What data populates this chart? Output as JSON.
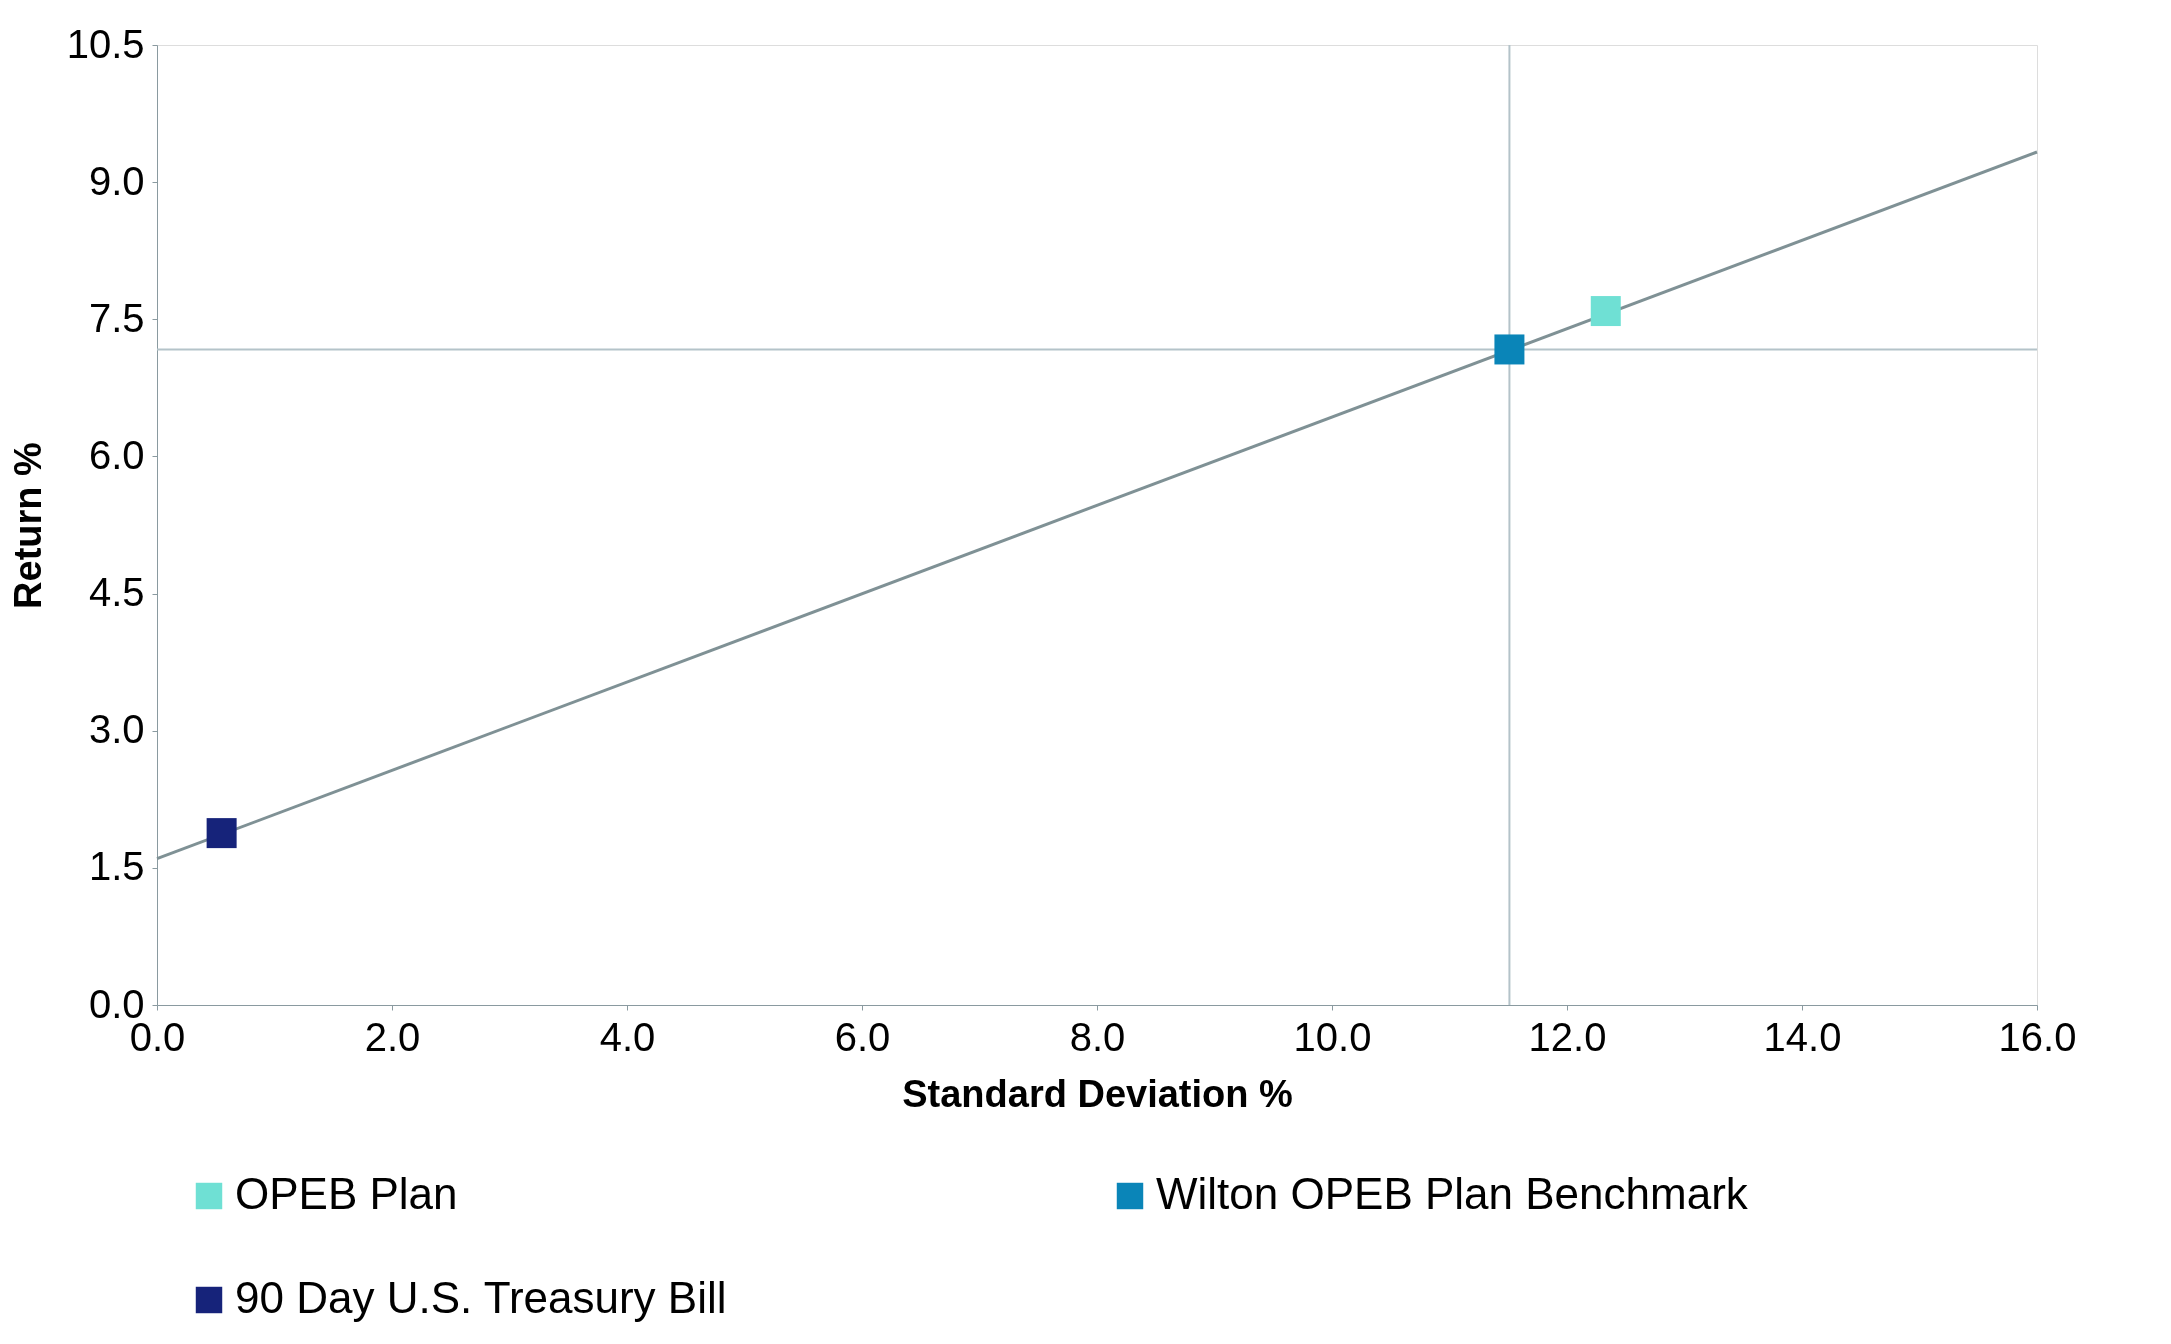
{
  "chart_data": {
    "type": "scatter",
    "xlabel": "Standard Deviation %",
    "ylabel": "Return %",
    "xlim": [
      0,
      16
    ],
    "xticks": [
      {
        "value": 0,
        "label": "0.0"
      },
      {
        "value": 2,
        "label": "2.0"
      },
      {
        "value": 4,
        "label": "4.0"
      },
      {
        "value": 6,
        "label": "6.0"
      },
      {
        "value": 8,
        "label": "8.0"
      },
      {
        "value": 10,
        "label": "10.0"
      },
      {
        "value": 12,
        "label": "12.0"
      },
      {
        "value": 14,
        "label": "14.0"
      },
      {
        "value": 16,
        "label": "16.0"
      }
    ],
    "ylim": [
      0,
      10.5
    ],
    "yticks": [
      {
        "value": 0,
        "label": "0.0"
      },
      {
        "value": 1.5,
        "label": "1.5"
      },
      {
        "value": 3,
        "label": "3.0"
      },
      {
        "value": 4.5,
        "label": "4.5"
      },
      {
        "value": 6,
        "label": "6.0"
      },
      {
        "value": 7.5,
        "label": "7.5"
      },
      {
        "value": 9,
        "label": "9.0"
      },
      {
        "value": 10.5,
        "label": "10.5"
      }
    ],
    "series": [
      {
        "name": "OPEB Plan",
        "color": "#6fe0d4",
        "x": [
          12.33
        ],
        "values": [
          7.59
        ]
      },
      {
        "name": "Wilton OPEB Plan Benchmark",
        "color": "#0a85b8",
        "x": [
          11.51
        ],
        "values": [
          7.17
        ]
      },
      {
        "name": "90 Day U.S. Treasury Bill",
        "color": "#16237a",
        "x": [
          0.55
        ],
        "values": [
          1.88
        ]
      },
      {
        "type": "line",
        "marker": "none",
        "color": "#7f9195",
        "x": [
          0,
          16
        ],
        "values": [
          1.6,
          9.33
        ]
      }
    ],
    "ref_lines": [
      {
        "axis": "x",
        "value": 11.51,
        "color": "#b4c3c9"
      },
      {
        "axis": "y",
        "value": 7.17,
        "color": "#b4c3c9"
      }
    ],
    "marker": "square",
    "grid": false,
    "legend": "bottom"
  }
}
